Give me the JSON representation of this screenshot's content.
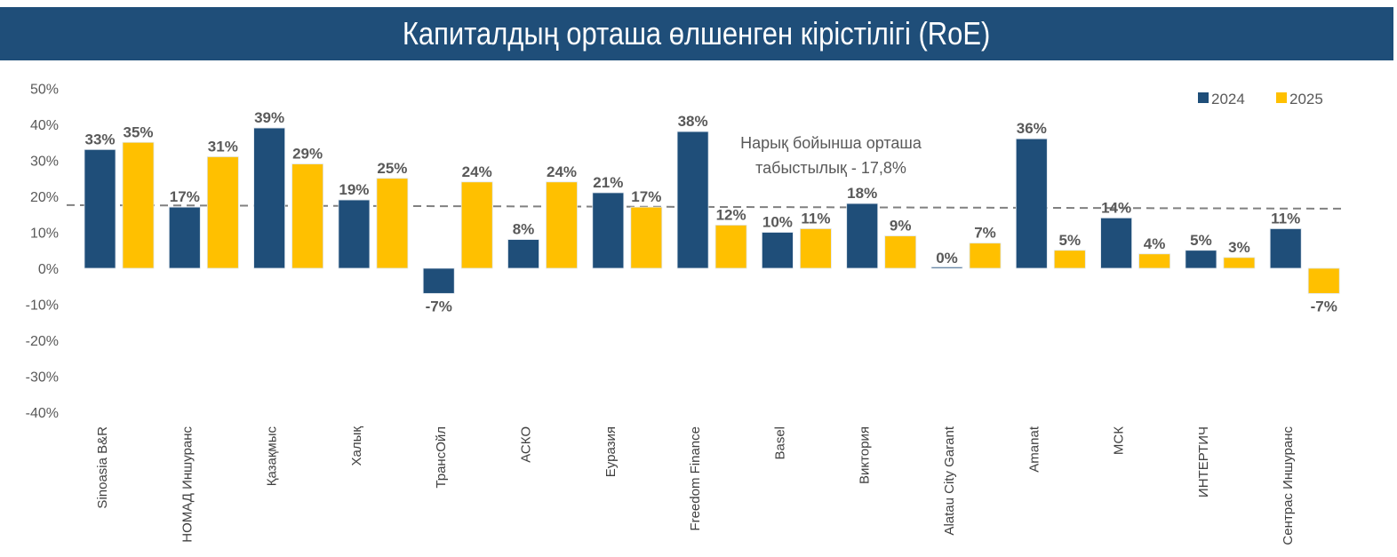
{
  "header": {
    "title": "Капиталдың орташа өлшенген кірістілігі (RoE)"
  },
  "chart_data": {
    "type": "bar",
    "title": "Капиталдың орташа өлшенген кірістілігі (RoE)",
    "xlabel": "",
    "ylabel": "",
    "ylim": [
      -40,
      50
    ],
    "yticks": [
      50,
      40,
      30,
      20,
      10,
      0,
      -10,
      -20,
      -30,
      -40
    ],
    "ytick_labels": [
      "50%",
      "40%",
      "30%",
      "20%",
      "10%",
      "0%",
      "-10%",
      "-20%",
      "-30%",
      "-40%"
    ],
    "grid": false,
    "legend_position": "top-right",
    "categories": [
      "Sinoasia B&R",
      "НОМАД Иншуранс",
      "Қазақмыс",
      "Халық",
      "ТрансОйл",
      "АСКО",
      "Еуразия",
      "Freedom Finance",
      "Basel",
      "Виктория",
      "Alatau City Garant",
      "Amanat",
      "МСК",
      "ИНТЕРТИЧ",
      "Сентрас Иншуранс"
    ],
    "series": [
      {
        "name": "2024",
        "color": "#1f4e79",
        "values": [
          33,
          17,
          39,
          19,
          -7,
          8,
          21,
          38,
          10,
          18,
          0,
          36,
          14,
          5,
          11
        ],
        "labels": [
          "33%",
          "17%",
          "39%",
          "19%",
          "-7%",
          "8%",
          "21%",
          "38%",
          "10%",
          "18%",
          "0%",
          "36%",
          "14%",
          "5%",
          "11%"
        ]
      },
      {
        "name": "2025",
        "color": "#ffc000",
        "values": [
          35,
          31,
          29,
          25,
          24,
          24,
          17,
          12,
          11,
          9,
          7,
          5,
          4,
          3,
          -7
        ],
        "labels": [
          "35%",
          "31%",
          "29%",
          "25%",
          "24%",
          "24%",
          "17%",
          "12%",
          "11%",
          "9%",
          "7%",
          "5%",
          "4%",
          "3%",
          "-7%"
        ]
      }
    ],
    "reference_line": {
      "value": 17.8,
      "style": "dashed",
      "color": "#808080",
      "annotation_lines": [
        "Нарық бойынша орташа",
        "табыстылық - 17,8%"
      ]
    }
  }
}
